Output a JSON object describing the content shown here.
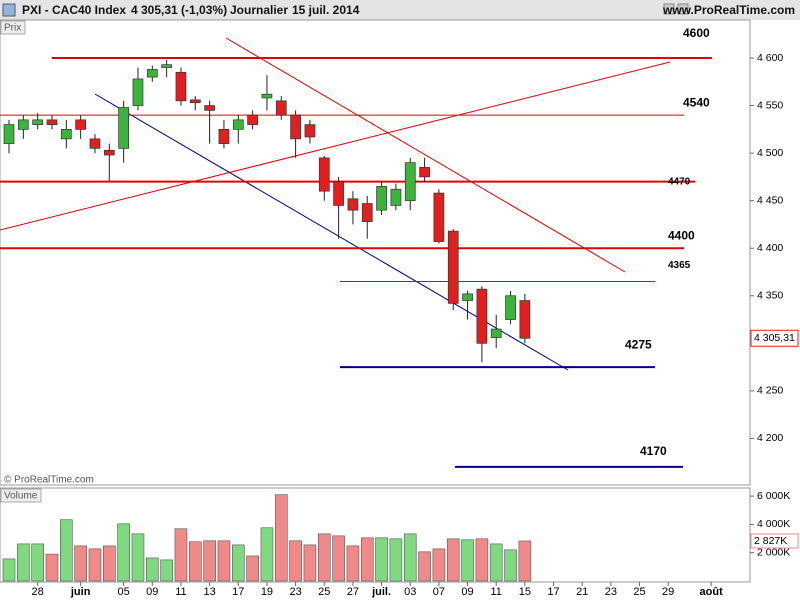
{
  "header": {
    "symbol": "PXI - CAC40 Index",
    "quote": "4 305,31 (-1,03%)",
    "period": "Journalier",
    "date": "15 juil. 2014",
    "site": "www.ProRealTime.com",
    "copyright": "© ProRealTime.com"
  },
  "chart_data": [
    {
      "type": "candlestick",
      "axis_label": "Prix",
      "categories": [
        null,
        null,
        "28",
        null,
        null,
        "juin",
        null,
        null,
        "05",
        null,
        "09",
        null,
        "11",
        null,
        "13",
        null,
        "17",
        null,
        "19",
        null,
        "23",
        null,
        "25",
        null,
        "27",
        null,
        "juil.",
        null,
        "03",
        null,
        "07",
        null,
        "09",
        null,
        "11",
        null,
        "15",
        null,
        "17",
        null,
        "21",
        null,
        "23",
        null,
        "25",
        null,
        "29",
        null,
        null,
        "août"
      ],
      "open": [
        4510,
        4525,
        4530,
        4535,
        4515,
        4535,
        4515,
        4503,
        4505,
        4550,
        4580,
        4590,
        4585,
        4556,
        4550,
        4525,
        4525,
        4540,
        4558,
        4555,
        4540,
        4530,
        4495,
        4470,
        4452,
        4447,
        4440,
        4445,
        4450,
        4485,
        4458,
        4418,
        4345,
        4357,
        4306,
        4325,
        4345,
        null,
        null,
        null,
        null,
        null,
        null,
        null,
        null,
        null,
        null,
        null,
        null,
        null
      ],
      "high": [
        4535,
        4540,
        4542,
        4540,
        4535,
        4540,
        4520,
        4510,
        4555,
        4590,
        4592,
        4598,
        4590,
        4560,
        4555,
        4535,
        4540,
        4545,
        4582,
        4560,
        4545,
        4535,
        4497,
        4475,
        4460,
        4455,
        4470,
        4468,
        4495,
        4495,
        4462,
        4420,
        4355,
        4360,
        4330,
        4355,
        4352,
        null,
        null,
        null,
        null,
        null,
        null,
        null,
        null,
        null,
        null,
        null,
        null,
        null
      ],
      "low": [
        4500,
        4515,
        4525,
        4525,
        4505,
        4515,
        4500,
        4470,
        4490,
        4545,
        4575,
        4580,
        4550,
        4545,
        4510,
        4505,
        4510,
        4525,
        4545,
        4535,
        4495,
        4510,
        4450,
        4410,
        4425,
        4410,
        4435,
        4440,
        4440,
        4470,
        4405,
        4335,
        4325,
        4280,
        4295,
        4320,
        4300,
        null,
        null,
        null,
        null,
        null,
        null,
        null,
        null,
        null,
        null,
        null,
        null,
        null
      ],
      "close": [
        4530,
        4535,
        4535,
        4530,
        4525,
        4525,
        4505,
        4498,
        4548,
        4578,
        4588,
        4593,
        4555,
        4553,
        4545,
        4510,
        4535,
        4530,
        4562,
        4540,
        4515,
        4517,
        4460,
        4445,
        4440,
        4428,
        4465,
        4462,
        4490,
        4475,
        4407,
        4342,
        4352,
        4300,
        4315,
        4350,
        4305.31,
        null,
        null,
        null,
        null,
        null,
        null,
        null,
        null,
        null,
        null,
        null,
        null,
        null
      ],
      "last_label": "4 305,31",
      "up_color": "#3cb43c",
      "down_color": "#e02020",
      "ylim": [
        4151,
        4640
      ],
      "yticks": [
        {
          "value": 4200,
          "label": "4 200"
        },
        {
          "value": 4250,
          "label": "4 250"
        },
        {
          "value": 4300,
          "label": "4 300"
        },
        {
          "value": 4350,
          "label": "4 350"
        },
        {
          "value": 4400,
          "label": "4 400"
        },
        {
          "value": 4450,
          "label": "4 450"
        },
        {
          "value": 4500,
          "label": "4 500"
        },
        {
          "value": 4550,
          "label": "4 550"
        },
        {
          "value": 4600,
          "label": "4 600"
        }
      ],
      "levels": [
        {
          "value": 4600,
          "color": "#e00000"
        },
        {
          "value": 4540,
          "color": "#e00000"
        },
        {
          "value": 4470,
          "color": "#e00000"
        },
        {
          "value": 4400,
          "color": "#e00000"
        },
        {
          "value": 4365,
          "color": "#e00000"
        },
        {
          "value": 4275,
          "color": "#000080"
        },
        {
          "value": 4170,
          "color": "#000080"
        }
      ]
    },
    {
      "type": "bar",
      "axis_label": "Volume",
      "values": [
        1560000,
        2620000,
        2620000,
        1900000,
        4330000,
        2480000,
        2270000,
        2480000,
        4040000,
        3330000,
        1630000,
        1490000,
        3690000,
        2770000,
        2840000,
        2840000,
        2550000,
        1770000,
        3760000,
        6100000,
        2840000,
        2550000,
        3330000,
        3190000,
        2480000,
        3050000,
        3050000,
        2980000,
        3330000,
        2060000,
        2270000,
        2980000,
        2910000,
        2980000,
        2620000,
        2200000,
        2827000,
        null,
        null,
        null,
        null,
        null,
        null,
        null,
        null,
        null,
        null,
        null,
        null,
        null
      ],
      "last_label": "2 827K",
      "up_color": "#80d880",
      "down_color": "#f08a8a",
      "ylim": [
        0,
        6500000
      ],
      "yticks": [
        {
          "value": 2000000,
          "label": "2 000K"
        },
        {
          "value": 4000000,
          "label": "4 000K"
        },
        {
          "value": 6000000,
          "label": "6 000K"
        }
      ]
    }
  ]
}
